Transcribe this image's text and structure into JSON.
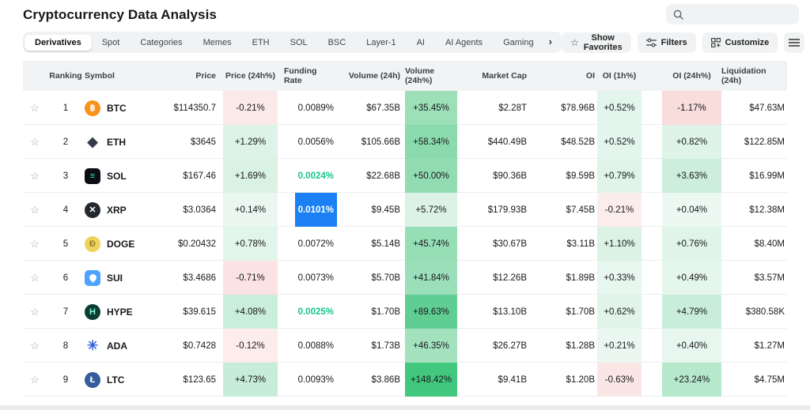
{
  "page": {
    "title": "Cryptocurrency Data Analysis"
  },
  "search": {
    "placeholder": "",
    "icon": "search-icon"
  },
  "tabs": {
    "items": [
      "Derivatives",
      "Spot",
      "Categories",
      "Memes",
      "ETH",
      "SOL",
      "BSC",
      "Layer-1",
      "AI",
      "AI Agents",
      "Gaming"
    ],
    "active": "Derivatives",
    "more_glyph": "›"
  },
  "toolbar": {
    "show_favorites": "Show Favorites",
    "favorites_star": "☆",
    "filters": "Filters",
    "customize": "Customize"
  },
  "colors": {
    "accent_blue": "#1b80f3",
    "green_text": "#17c784",
    "header_bg": "#f1f3f4"
  },
  "table": {
    "columns": {
      "ranking": "Ranking",
      "symbol": "Symbol",
      "price": "Price",
      "price_chg": "Price (24h%)",
      "funding": "Funding Rate",
      "volume": "Volume (24h)",
      "volume_chg": "Volume (24h%)",
      "mcap": "Market Cap",
      "oi": "OI",
      "oi1h": "OI (1h%)",
      "oi24h": "OI (24h%)",
      "liq": "Liquidation (24h)"
    },
    "rows": [
      {
        "rank": "1",
        "symbol": "BTC",
        "price": "$114350.7",
        "price_chg": "-0.21%",
        "price_chg_bg": "#fbe9e9",
        "funding": "0.0089%",
        "funding_green": false,
        "funding_selected": false,
        "volume": "$67.35B",
        "volume_chg": "+35.45%",
        "volume_chg_bg": "#9cdfb8",
        "mcap": "$2.28T",
        "oi": "$78.96B",
        "oi1h": "+0.52%",
        "oi1h_bg": "#e3f5ec",
        "oi24h": "-1.17%",
        "oi24h_bg": "#f9dcdc",
        "liq": "$47.63M",
        "icon": {
          "glyph": "฿",
          "bg": "#f7931a",
          "fg": "#ffffff",
          "shape": "circle"
        }
      },
      {
        "rank": "2",
        "symbol": "ETH",
        "price": "$3645",
        "price_chg": "+1.29%",
        "price_chg_bg": "#ddf3e7",
        "funding": "0.0056%",
        "funding_green": false,
        "funding_selected": false,
        "volume": "$105.66B",
        "volume_chg": "+58.34%",
        "volume_chg_bg": "#8bdaae",
        "mcap": "$440.49B",
        "oi": "$48.52B",
        "oi1h": "+0.52%",
        "oi1h_bg": "#e3f5ec",
        "oi24h": "+0.82%",
        "oi24h_bg": "#dff4e9",
        "liq": "$122.85M",
        "icon": {
          "glyph": "◆",
          "bg": "",
          "fg": "#343a46",
          "shape": "plain"
        }
      },
      {
        "rank": "3",
        "symbol": "SOL",
        "price": "$167.46",
        "price_chg": "+1.69%",
        "price_chg_bg": "#d9f2e4",
        "funding": "0.0024%",
        "funding_green": true,
        "funding_selected": false,
        "volume": "$22.68B",
        "volume_chg": "+50.00%",
        "volume_chg_bg": "#92dcb3",
        "mcap": "$90.36B",
        "oi": "$9.59B",
        "oi1h": "+0.79%",
        "oi1h_bg": "#e0f4e9",
        "oi24h": "+3.63%",
        "oi24h_bg": "#cceedb",
        "liq": "$16.99M",
        "icon": {
          "glyph": "≡",
          "bg": "#0b0d12",
          "fg": "#2be6a9",
          "shape": "square"
        }
      },
      {
        "rank": "4",
        "symbol": "XRP",
        "price": "$3.0364",
        "price_chg": "+0.14%",
        "price_chg_bg": "#e9f7f0",
        "funding": "0.0101%",
        "funding_green": false,
        "funding_selected": true,
        "volume": "$9.45B",
        "volume_chg": "+5.72%",
        "volume_chg_bg": "#dcf2e6",
        "mcap": "$179.93B",
        "oi": "$7.45B",
        "oi1h": "-0.21%",
        "oi1h_bg": "#fceded",
        "oi24h": "+0.04%",
        "oi24h_bg": "#ecf8f2",
        "liq": "$12.38M",
        "icon": {
          "glyph": "✕",
          "bg": "#23292f",
          "fg": "#ffffff",
          "shape": "circle"
        }
      },
      {
        "rank": "5",
        "symbol": "DOGE",
        "price": "$0.20432",
        "price_chg": "+0.78%",
        "price_chg_bg": "#e2f5ea",
        "funding": "0.0072%",
        "funding_green": false,
        "funding_selected": false,
        "volume": "$5.14B",
        "volume_chg": "+45.74%",
        "volume_chg_bg": "#96deb6",
        "mcap": "$30.67B",
        "oi": "$3.11B",
        "oi1h": "+1.10%",
        "oi1h_bg": "#dcf2e5",
        "oi24h": "+0.76%",
        "oi24h_bg": "#e0f4e9",
        "liq": "$8.40M",
        "icon": {
          "glyph": "Ð",
          "bg": "#efd35f",
          "fg": "#9a7d22",
          "shape": "circle"
        }
      },
      {
        "rank": "6",
        "symbol": "SUI",
        "price": "$3.4686",
        "price_chg": "-0.71%",
        "price_chg_bg": "#fbe3e3",
        "funding": "0.0073%",
        "funding_green": false,
        "funding_selected": false,
        "volume": "$5.70B",
        "volume_chg": "+41.84%",
        "volume_chg_bg": "#9bdfba",
        "mcap": "$12.26B",
        "oi": "$1.89B",
        "oi1h": "+0.33%",
        "oi1h_bg": "#e7f6ee",
        "oi24h": "+0.49%",
        "oi24h_bg": "#e5f6ed",
        "liq": "$3.57M",
        "icon": {
          "glyph": "",
          "bg": "#4da3ff",
          "fg": "#ffffff",
          "shape": "drop-square"
        }
      },
      {
        "rank": "7",
        "symbol": "HYPE",
        "price": "$39.615",
        "price_chg": "+4.08%",
        "price_chg_bg": "#c9eed9",
        "funding": "0.0025%",
        "funding_green": true,
        "funding_selected": false,
        "volume": "$1.70B",
        "volume_chg": "+89.63%",
        "volume_chg_bg": "#60cd92",
        "mcap": "$13.10B",
        "oi": "$1.70B",
        "oi1h": "+0.62%",
        "oi1h_bg": "#e2f4ea",
        "oi24h": "+4.79%",
        "oi24h_bg": "#c8edd8",
        "liq": "$380.58K",
        "icon": {
          "glyph": "H",
          "bg": "#0a3d33",
          "fg": "#86f7d3",
          "shape": "circle"
        }
      },
      {
        "rank": "8",
        "symbol": "ADA",
        "price": "$0.7428",
        "price_chg": "-0.12%",
        "price_chg_bg": "#fcecec",
        "funding": "0.0088%",
        "funding_green": false,
        "funding_selected": false,
        "volume": "$1.73B",
        "volume_chg": "+46.35%",
        "volume_chg_bg": "#a4e2bf",
        "mcap": "$26.27B",
        "oi": "$1.28B",
        "oi1h": "+0.21%",
        "oi1h_bg": "#e9f7f0",
        "oi24h": "+0.40%",
        "oi24h_bg": "#e7f6ee",
        "liq": "$1.27M",
        "icon": {
          "glyph": "✳",
          "bg": "",
          "fg": "#2f5fdd",
          "shape": "plain"
        }
      },
      {
        "rank": "9",
        "symbol": "LTC",
        "price": "$123.65",
        "price_chg": "+4.73%",
        "price_chg_bg": "#c7edd8",
        "funding": "0.0093%",
        "funding_green": false,
        "funding_selected": false,
        "volume": "$3.86B",
        "volume_chg": "+148.42%",
        "volume_chg_bg": "#41c77e",
        "mcap": "$9.41B",
        "oi": "$1.20B",
        "oi1h": "-0.63%",
        "oi1h_bg": "#fbe6e6",
        "oi24h": "+23.24%",
        "oi24h_bg": "#b6e8cc",
        "liq": "$4.75M",
        "icon": {
          "glyph": "Ł",
          "bg": "#355d9e",
          "fg": "#ffffff",
          "shape": "circle"
        }
      }
    ]
  }
}
